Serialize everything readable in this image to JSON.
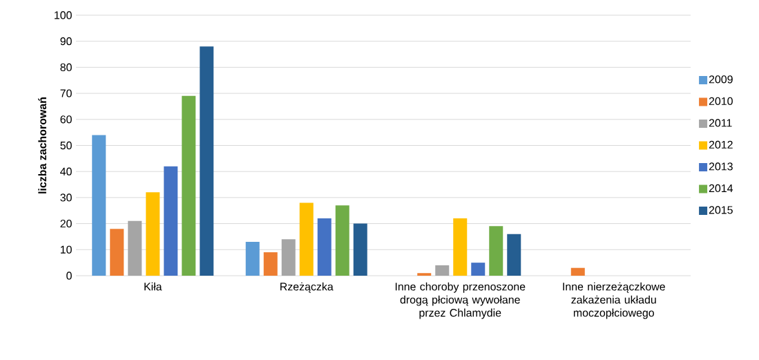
{
  "chart_data": {
    "type": "bar",
    "ylabel": "liczba zachorowań",
    "categories": [
      "Kiła",
      "Rzeżączka",
      "Inne choroby przenoszone drogą płciową wywołane przez Chlamydie",
      "Inne nierzeżączkowe zakażenia układu moczopłciowego"
    ],
    "series": [
      {
        "name": "2009",
        "color": "#5b9bd5",
        "values": [
          54,
          13,
          0,
          0
        ]
      },
      {
        "name": "2010",
        "color": "#ed7d31",
        "values": [
          18,
          9,
          1,
          3
        ]
      },
      {
        "name": "2011",
        "color": "#a5a5a5",
        "values": [
          21,
          14,
          4,
          0
        ]
      },
      {
        "name": "2012",
        "color": "#ffc000",
        "values": [
          32,
          28,
          22,
          0
        ]
      },
      {
        "name": "2013",
        "color": "#4472c4",
        "values": [
          42,
          22,
          5,
          0
        ]
      },
      {
        "name": "2014",
        "color": "#70ad47",
        "values": [
          69,
          27,
          19,
          0
        ]
      },
      {
        "name": "2015",
        "color": "#255e91",
        "values": [
          88,
          20,
          16,
          0
        ]
      }
    ],
    "ylim": [
      0,
      100
    ],
    "yticks": [
      0,
      10,
      20,
      30,
      40,
      50,
      60,
      70,
      80,
      90,
      100
    ],
    "grid": "y",
    "legend": "right"
  }
}
